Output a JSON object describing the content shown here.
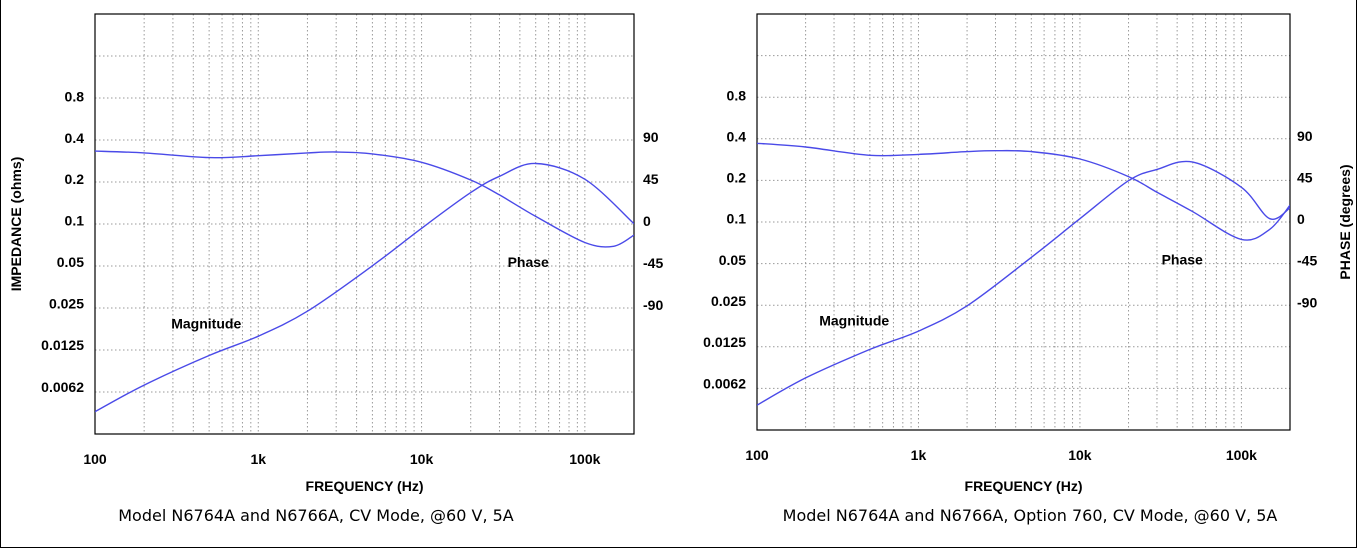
{
  "colors": {
    "curve": "#4a4ae8",
    "grid": "#9a9a9a",
    "plot_bg": "#ffffff",
    "text": "#000000"
  },
  "axes_text": {
    "left_ylabel": "IMPEDANCE (ohms)",
    "right_ylabel": "PHASE (degrees)"
  },
  "chart_data": [
    {
      "type": "line",
      "title": "",
      "caption": "Model N6764A and N6766A, CV Mode, @60 V, 5A",
      "xlabel": "FREQUENCY (Hz)",
      "x_scale": "log",
      "xlim": [
        100,
        200000
      ],
      "x_ticks": [
        {
          "v": 100,
          "label": "100"
        },
        {
          "v": 1000,
          "label": "1k"
        },
        {
          "v": 10000,
          "label": "10k"
        },
        {
          "v": 100000,
          "label": "100k"
        }
      ],
      "ylabel": "IMPEDANCE (ohms)",
      "y_scale": "log",
      "y_ticks": [
        {
          "v": 0.8,
          "label": "0.8"
        },
        {
          "v": 0.4,
          "label": "0.4"
        },
        {
          "v": 0.2,
          "label": "0.2"
        },
        {
          "v": 0.1,
          "label": "0.1"
        },
        {
          "v": 0.05,
          "label": "0.05"
        },
        {
          "v": 0.025,
          "label": "0.025"
        },
        {
          "v": 0.0125,
          "label": "0.0125"
        },
        {
          "v": 0.0062,
          "label": "0.0062"
        }
      ],
      "y2label": "",
      "y2_ticks": [
        {
          "v": 90,
          "label": "90"
        },
        {
          "v": 45,
          "label": "45"
        },
        {
          "v": 0,
          "label": "0"
        },
        {
          "v": -45,
          "label": "-45"
        },
        {
          "v": -90,
          "label": "-90"
        }
      ],
      "grid": true,
      "series": [
        {
          "name": "Magnitude",
          "axis": "left",
          "x": [
            100,
            200,
            500,
            1000,
            2000,
            5000,
            10000,
            20000,
            30000,
            50000,
            100000,
            200000
          ],
          "y": [
            0.0041,
            0.0064,
            0.0105,
            0.0145,
            0.022,
            0.047,
            0.088,
            0.16,
            0.21,
            0.26,
            0.2,
            0.095
          ]
        },
        {
          "name": "Phase",
          "axis": "right",
          "x": [
            100,
            200,
            500,
            1000,
            2000,
            3000,
            5000,
            10000,
            20000,
            30000,
            50000,
            100000,
            150000,
            200000
          ],
          "y": [
            75,
            73,
            68,
            70,
            73,
            74,
            72,
            63,
            44,
            28,
            5,
            -23,
            -27,
            -15
          ]
        }
      ],
      "annotations": [
        {
          "text": "Magnitude",
          "x": 480,
          "y": 0.0165
        },
        {
          "text": "Phase",
          "x": 45000,
          "y": -49
        }
      ]
    },
    {
      "type": "line",
      "title": "",
      "caption": "Model N6764A and N6766A, Option 760, CV Mode, @60 V, 5A",
      "xlabel": "FREQUENCY (Hz)",
      "x_scale": "log",
      "xlim": [
        100,
        200000
      ],
      "x_ticks": [
        {
          "v": 100,
          "label": "100"
        },
        {
          "v": 1000,
          "label": "1k"
        },
        {
          "v": 10000,
          "label": "10k"
        },
        {
          "v": 100000,
          "label": "100k"
        }
      ],
      "ylabel": "",
      "y_scale": "log",
      "y_ticks": [
        {
          "v": 0.8,
          "label": "0.8"
        },
        {
          "v": 0.4,
          "label": "0.4"
        },
        {
          "v": 0.2,
          "label": "0.2"
        },
        {
          "v": 0.1,
          "label": "0.1"
        },
        {
          "v": 0.05,
          "label": "0.05"
        },
        {
          "v": 0.025,
          "label": "0.025"
        },
        {
          "v": 0.0125,
          "label": "0.0125"
        },
        {
          "v": 0.0062,
          "label": "0.0062"
        }
      ],
      "y2label": "PHASE (degrees)",
      "y2_ticks": [
        {
          "v": 90,
          "label": "90"
        },
        {
          "v": 45,
          "label": "45"
        },
        {
          "v": 0,
          "label": "0"
        },
        {
          "v": -45,
          "label": "-45"
        },
        {
          "v": -90,
          "label": "-90"
        }
      ],
      "grid": true,
      "series": [
        {
          "name": "Magnitude",
          "axis": "left",
          "x": [
            100,
            200,
            500,
            1000,
            2000,
            5000,
            10000,
            20000,
            30000,
            50000,
            100000,
            150000,
            200000
          ],
          "y": [
            0.0043,
            0.0068,
            0.011,
            0.015,
            0.023,
            0.052,
            0.1,
            0.19,
            0.23,
            0.26,
            0.17,
            0.1,
            0.12
          ]
        },
        {
          "name": "Phase",
          "axis": "right",
          "x": [
            100,
            200,
            500,
            1000,
            2000,
            3000,
            5000,
            10000,
            20000,
            30000,
            50000,
            100000,
            150000,
            200000
          ],
          "y": [
            82,
            78,
            69,
            70,
            73,
            74,
            73,
            65,
            46,
            29,
            8,
            -22,
            -11,
            15
          ]
        }
      ],
      "annotations": [
        {
          "text": "Magnitude",
          "x": 400,
          "y": 0.0165
        },
        {
          "text": "Phase",
          "x": 43000,
          "y": -49
        }
      ]
    }
  ]
}
